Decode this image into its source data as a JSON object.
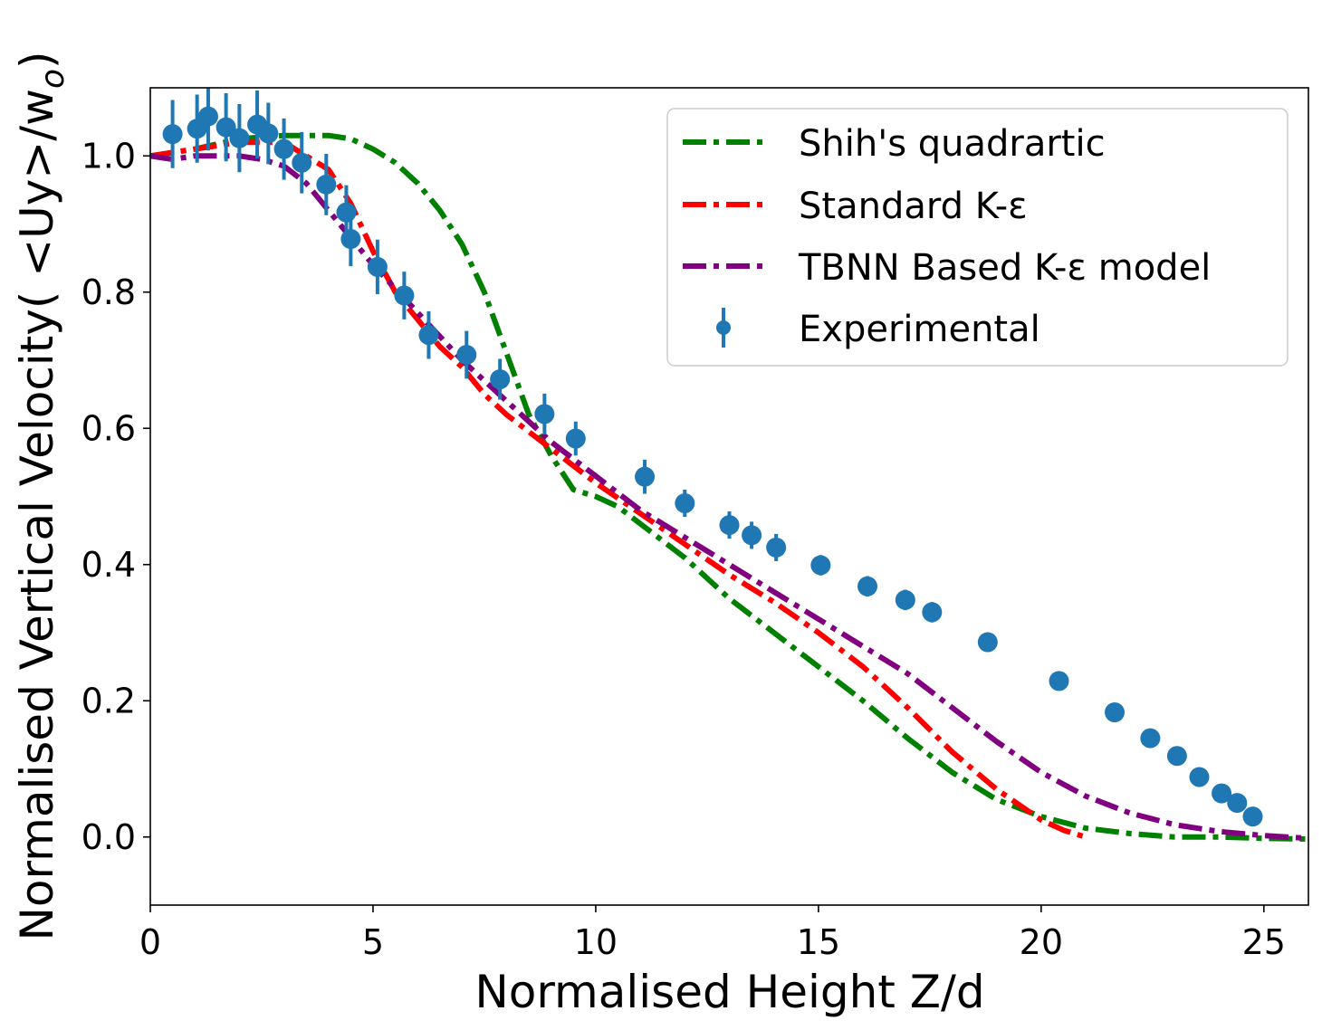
{
  "chart_data": {
    "type": "line",
    "title": "",
    "xlabel": "Normalised Height Z/d",
    "ylabel": "Normalised Vertical Velocity( <Uy>/w",
    "ylabel_sub": "o",
    "ylabel_close": ")",
    "xlim": [
      0,
      26
    ],
    "ylim": [
      -0.1,
      1.1
    ],
    "x_ticks": [
      0,
      5,
      10,
      15,
      20,
      25
    ],
    "x_tick_labels": [
      "0",
      "5",
      "10",
      "15",
      "20",
      "25"
    ],
    "y_ticks": [
      0.0,
      0.2,
      0.4,
      0.6,
      0.8,
      1.0
    ],
    "y_tick_labels": [
      "0.0",
      "0.2",
      "0.4",
      "0.6",
      "0.8",
      "1.0"
    ],
    "grid": false,
    "legend_position": "top-right",
    "series": [
      {
        "name": "Shih's quadrartic",
        "style": "dashdot",
        "color": "#008000",
        "x": [
          0,
          1,
          2,
          3,
          4,
          4.5,
          5,
          5.5,
          6,
          6.5,
          7,
          7.5,
          8,
          8.5,
          9,
          9.5,
          10,
          10.5,
          11,
          12,
          13,
          14,
          15,
          16,
          17,
          18,
          19,
          20,
          21,
          22,
          23,
          24,
          25,
          26
        ],
        "y": [
          1.0,
          1.01,
          1.025,
          1.03,
          1.03,
          1.025,
          1.01,
          0.99,
          0.96,
          0.92,
          0.87,
          0.8,
          0.71,
          0.62,
          0.56,
          0.51,
          0.5,
          0.485,
          0.46,
          0.41,
          0.35,
          0.3,
          0.25,
          0.2,
          0.145,
          0.095,
          0.055,
          0.03,
          0.013,
          0.005,
          0.0,
          0.0,
          -0.002,
          -0.003
        ]
      },
      {
        "name": "Standard K-ε",
        "style": "dashdot",
        "color": "#ff0000",
        "x": [
          0,
          0.5,
          1,
          1.5,
          2,
          2.5,
          3,
          3.5,
          4,
          4.5,
          5,
          5.5,
          6,
          6.5,
          7,
          7.5,
          8,
          9,
          10,
          11,
          12,
          13,
          14,
          15,
          16,
          17,
          18,
          19,
          20,
          20.5,
          21
        ],
        "y": [
          1.0,
          1.005,
          1.01,
          1.015,
          1.02,
          1.02,
          1.02,
          1.0,
          0.98,
          0.93,
          0.86,
          0.8,
          0.76,
          0.72,
          0.69,
          0.65,
          0.62,
          0.57,
          0.52,
          0.475,
          0.43,
          0.385,
          0.345,
          0.3,
          0.25,
          0.19,
          0.125,
          0.07,
          0.025,
          0.01,
          0.0
        ]
      },
      {
        "name": "TBNN Based K-ε model",
        "style": "dashdot",
        "color": "#800080",
        "x": [
          0,
          0.5,
          1,
          1.5,
          2,
          2.5,
          3,
          3.5,
          4,
          4.5,
          5,
          6,
          7,
          8,
          9,
          10,
          11,
          12,
          13,
          14,
          15,
          16,
          17,
          18,
          19,
          20,
          21,
          22,
          23,
          24,
          25,
          26
        ],
        "y": [
          1.0,
          0.995,
          1.0,
          1.0,
          1.0,
          0.995,
          0.985,
          0.96,
          0.92,
          0.88,
          0.84,
          0.77,
          0.7,
          0.64,
          0.58,
          0.53,
          0.48,
          0.44,
          0.4,
          0.36,
          0.32,
          0.28,
          0.24,
          0.19,
          0.14,
          0.095,
          0.06,
          0.035,
          0.018,
          0.008,
          0.002,
          -0.002
        ]
      }
    ],
    "scatter": {
      "name": "Experimental",
      "color": "#1f77b4",
      "x": [
        0.5,
        1.05,
        1.3,
        1.7,
        2.0,
        2.4,
        2.65,
        3.0,
        3.4,
        3.95,
        4.4,
        4.5,
        5.1,
        5.7,
        6.25,
        7.1,
        7.85,
        8.85,
        9.55,
        11.1,
        12.0,
        13.0,
        13.5,
        14.05,
        15.05,
        16.1,
        16.95,
        17.55,
        18.8,
        20.4,
        21.65,
        22.45,
        23.05,
        23.55,
        24.05,
        24.4,
        24.75
      ],
      "y": [
        1.032,
        1.04,
        1.058,
        1.042,
        1.026,
        1.046,
        1.033,
        1.01,
        0.99,
        0.958,
        0.917,
        0.878,
        0.837,
        0.795,
        0.737,
        0.708,
        0.672,
        0.621,
        0.585,
        0.529,
        0.49,
        0.458,
        0.443,
        0.425,
        0.399,
        0.368,
        0.348,
        0.33,
        0.286,
        0.229,
        0.183,
        0.145,
        0.119,
        0.088,
        0.064,
        0.05,
        0.03
      ],
      "err": [
        0.05,
        0.05,
        0.05,
        0.05,
        0.05,
        0.05,
        0.045,
        0.045,
        0.045,
        0.045,
        0.04,
        0.04,
        0.04,
        0.035,
        0.035,
        0.035,
        0.03,
        0.03,
        0.025,
        0.025,
        0.02,
        0.02,
        0.02,
        0.02,
        0.015,
        0.015,
        0.015,
        0.015,
        0.01,
        0.01,
        0.01,
        0.01,
        0.01,
        0.01,
        0.01,
        0.01,
        0.01
      ]
    },
    "legend": [
      "Shih's quadrartic",
      "Standard K-ε",
      "TBNN Based K-ε model",
      "Experimental"
    ]
  }
}
